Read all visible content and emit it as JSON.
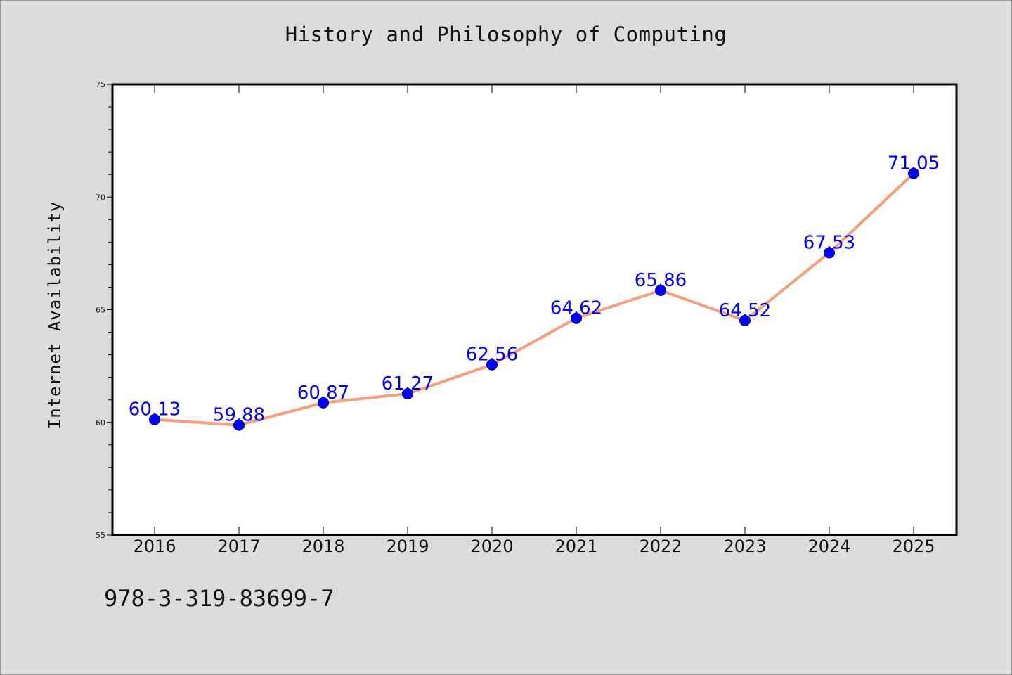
{
  "page": {
    "title": "History and Philosophy of Computing",
    "footer_code": "978-3-319-83699-7"
  },
  "chart_data": {
    "type": "line",
    "title": "History and Philosophy of Computing",
    "xlabel": "",
    "ylabel": "Internet Availability",
    "categories": [
      "2016",
      "2017",
      "2018",
      "2019",
      "2020",
      "2021",
      "2022",
      "2023",
      "2024",
      "2025"
    ],
    "series": [
      {
        "values": [
          60.13,
          59.88,
          60.87,
          61.27,
          62.56,
          64.62,
          65.86,
          64.52,
          67.53,
          71.05
        ]
      }
    ],
    "data_labels": [
      "60.13",
      "59.88",
      "60.87",
      "61.27",
      "62.56",
      "64.62",
      "65.86",
      "64.52",
      "67.53",
      "71.05"
    ],
    "ylim": [
      55,
      75
    ],
    "y_ticks": [
      55,
      60,
      65,
      70,
      75
    ],
    "y_minor_step": 1,
    "grid": false,
    "legend": "none",
    "colors": {
      "line": "#f4a07f",
      "marker": "#0000ff",
      "marker_edge": "#00007a",
      "label": "#0000ff",
      "plot_background": "#ffffff",
      "page_background": "#dcdcdc"
    }
  }
}
